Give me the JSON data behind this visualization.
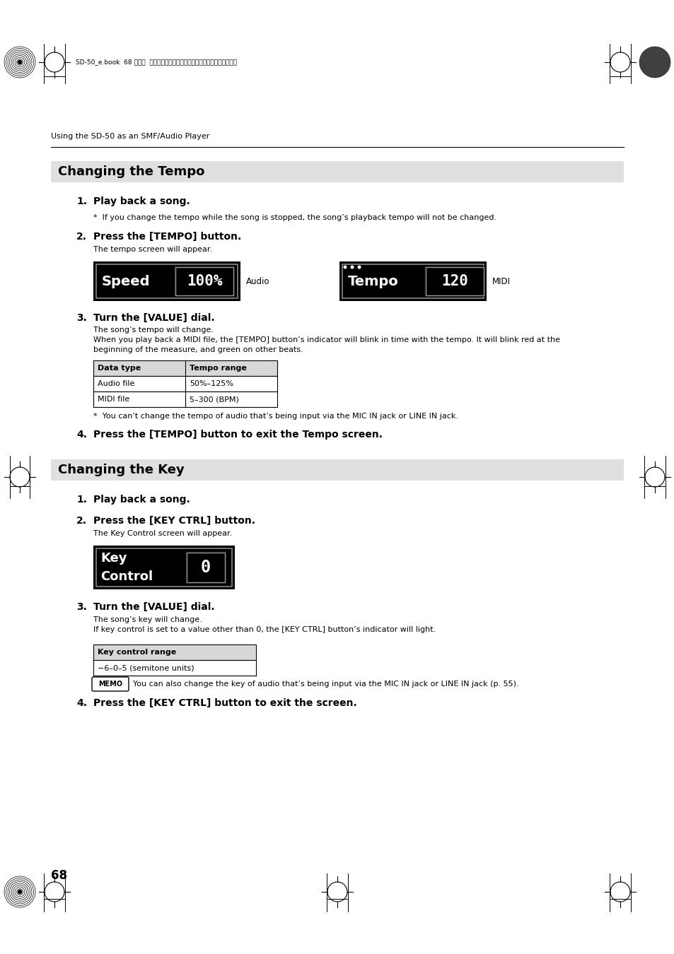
{
  "page_bg": "#ffffff",
  "header_text": "SD-50_e.book  68 ページ  ２０１０年１月２５日ト月曜日ト午前１０時５２分",
  "section_label": "Using the SD-50 as an SMF/Audio Player",
  "section1_title": "Changing the Tempo",
  "section2_title": "Changing the Key",
  "page_number": "68",
  "memo_text": "You can also change the key of audio that’s being input via the MIC IN jack or LINE IN jack (p. 55).",
  "key_control_range_header": "Key control range",
  "key_control_range_value": "−6–0–5 (semitone units)",
  "tempo_note1": "*  If you change the tempo while the song is stopped, the song’s playback tempo will not be changed.",
  "tempo_note2": "*  You can’t change the tempo of audio that’s being input via the MIC IN jack or LINE IN jack.",
  "tempo_text3a": "The song’s tempo will change.",
  "tempo_text3b": "When you play back a MIDI file, the [TEMPO] button’s indicator will blink in time with the tempo. It will blink red at the",
  "tempo_text3c": "beginning of the measure, and green on other beats.",
  "key_text3a": "The song’s key will change.",
  "key_text3b": "If key control is set to a value other than 0, the [KEY CTRL] button’s indicator will light."
}
